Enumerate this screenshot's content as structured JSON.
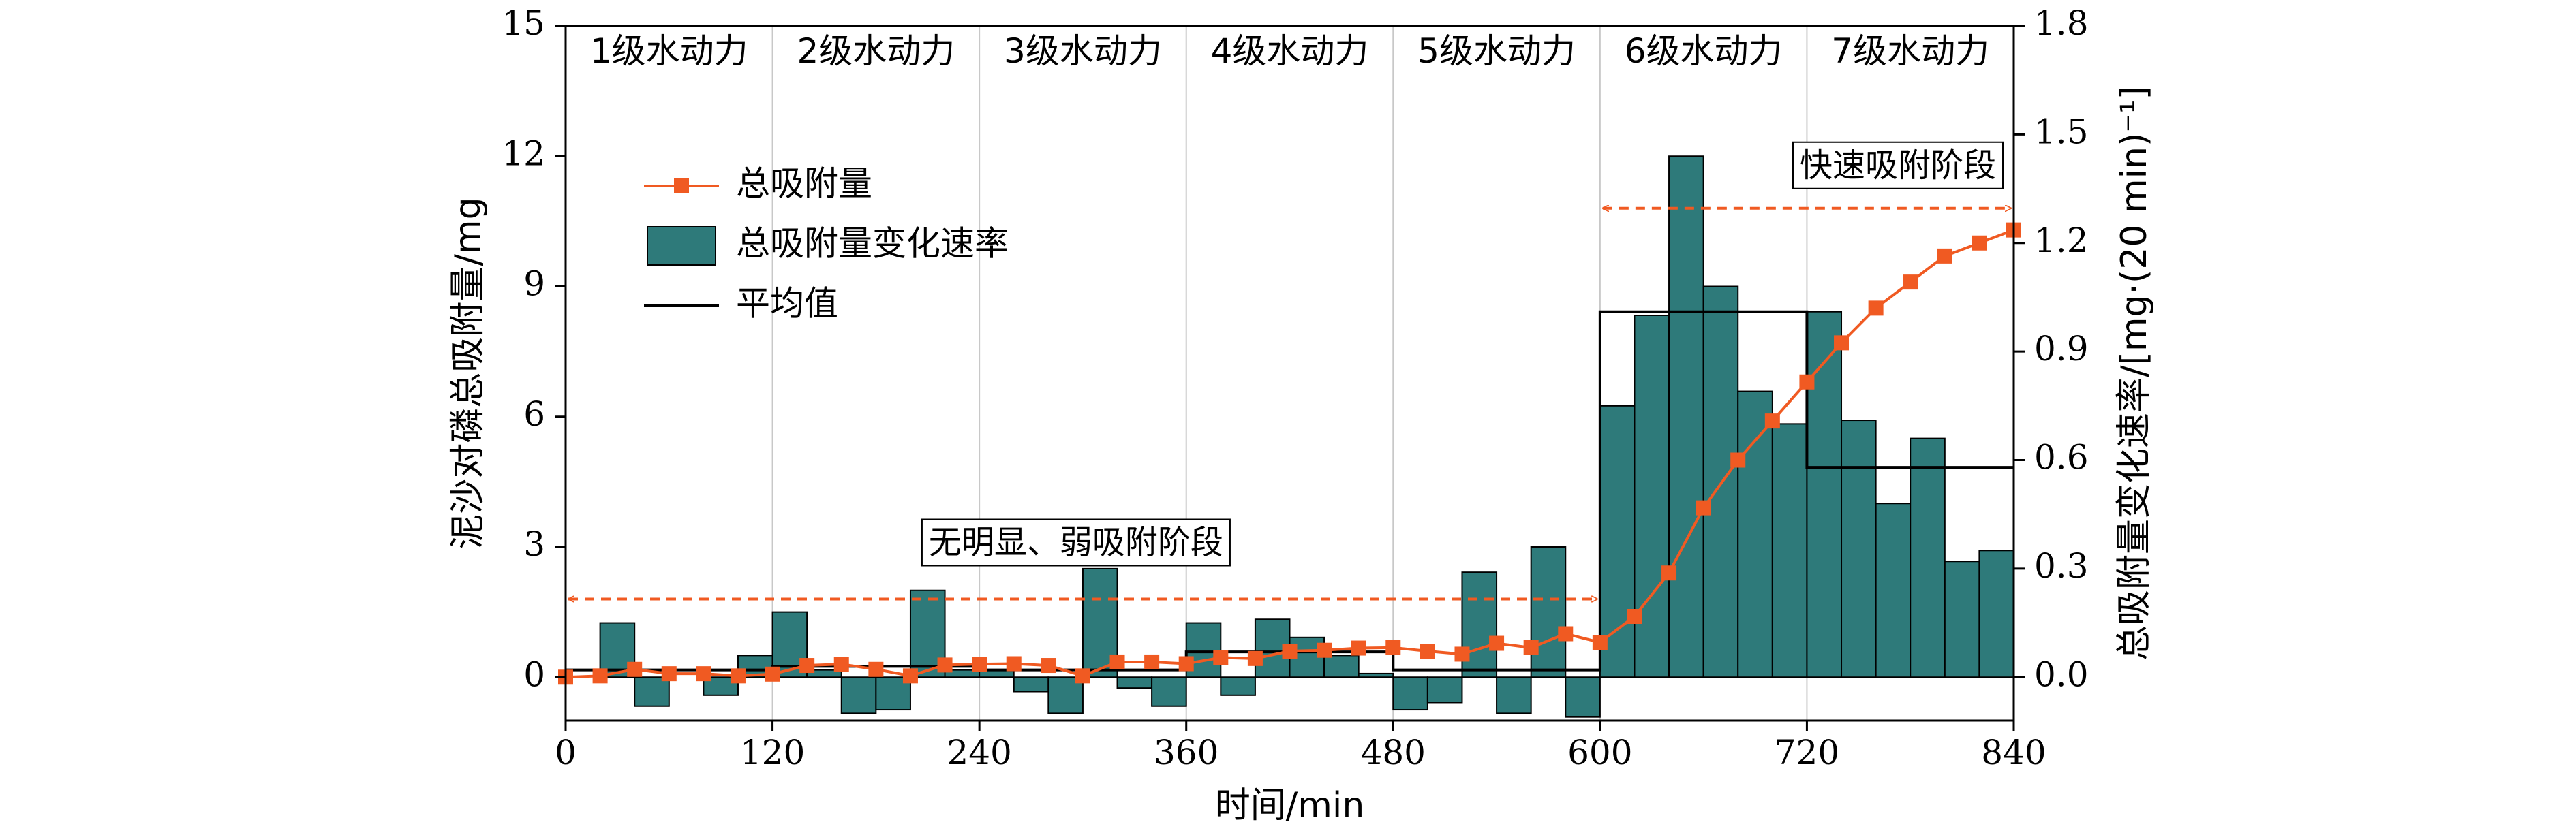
{
  "chart_data": {
    "type": "bar+line",
    "x_axis": {
      "label": "时间/min",
      "min": 0,
      "max": 840,
      "ticks": [
        0,
        120,
        240,
        360,
        480,
        600,
        720,
        840
      ]
    },
    "y_left": {
      "label": "泥沙对磷总吸附量/mg",
      "min": -1,
      "max": 15,
      "ticks": [
        0,
        3,
        6,
        9,
        12,
        15
      ],
      "tick_labels": [
        "0",
        "3",
        "6",
        "9",
        "12",
        "15"
      ]
    },
    "y_right": {
      "label": "总吸附量变化速率/[mg·(20 min)⁻¹]",
      "min": -0.12,
      "max": 1.8,
      "ticks": [
        0,
        0.3,
        0.6,
        0.9,
        1.2,
        1.5,
        1.8
      ],
      "tick_labels": [
        "0.0",
        "0.3",
        "0.6",
        "0.9",
        "1.2",
        "1.5",
        "1.8"
      ]
    },
    "stages": [
      "1级水动力",
      "2级水动力",
      "3级水动力",
      "4级水动力",
      "5级水动力",
      "6级水动力",
      "7级水动力"
    ],
    "legend": {
      "position": "top-left",
      "items": [
        "总吸附量",
        "总吸附量变化速率",
        "平均值"
      ]
    },
    "series": [
      {
        "name": "总吸附量",
        "type": "line",
        "axis": "left",
        "x": [
          0,
          20,
          40,
          60,
          80,
          100,
          120,
          140,
          160,
          180,
          200,
          220,
          240,
          260,
          280,
          300,
          320,
          340,
          360,
          380,
          400,
          420,
          440,
          460,
          480,
          500,
          520,
          540,
          560,
          580,
          600,
          620,
          640,
          660,
          680,
          700,
          720,
          740,
          760,
          780,
          800,
          820,
          840
        ],
        "values": [
          0.0,
          0.03,
          0.18,
          0.08,
          0.08,
          0.03,
          0.07,
          0.27,
          0.3,
          0.18,
          0.03,
          0.28,
          0.3,
          0.31,
          0.27,
          0.03,
          0.35,
          0.35,
          0.31,
          0.45,
          0.43,
          0.6,
          0.62,
          0.67,
          0.68,
          0.6,
          0.53,
          0.78,
          0.68,
          1.0,
          0.8,
          1.4,
          2.4,
          3.9,
          5.0,
          5.9,
          6.8,
          7.7,
          8.5,
          9.1,
          9.7,
          10.0,
          10.3
        ]
      },
      {
        "name": "总吸附量变化速率",
        "type": "bar",
        "axis": "right",
        "x": [
          10,
          30,
          50,
          70,
          90,
          110,
          130,
          150,
          170,
          190,
          210,
          230,
          250,
          270,
          290,
          310,
          330,
          350,
          370,
          390,
          410,
          430,
          450,
          470,
          490,
          510,
          530,
          550,
          570,
          590,
          610,
          630,
          650,
          670,
          690,
          710,
          730,
          750,
          770,
          790,
          810,
          830
        ],
        "values": [
          0.0,
          0.15,
          -0.08,
          0.0,
          -0.05,
          0.06,
          0.18,
          0.02,
          -0.1,
          -0.09,
          0.24,
          0.02,
          0.02,
          -0.04,
          -0.1,
          0.3,
          -0.03,
          -0.08,
          0.15,
          -0.05,
          0.16,
          0.11,
          0.06,
          0.01,
          -0.09,
          -0.07,
          0.29,
          -0.1,
          0.36,
          -0.11,
          0.75,
          1.0,
          1.44,
          1.08,
          0.79,
          0.7,
          1.01,
          0.71,
          0.48,
          0.66,
          0.32,
          0.35
        ]
      },
      {
        "name": "平均值",
        "type": "step",
        "axis": "right",
        "x": [
          0,
          120,
          120,
          240,
          240,
          360,
          360,
          480,
          480,
          600,
          600,
          720,
          720,
          840
        ],
        "values": [
          0.02,
          0.02,
          0.03,
          0.03,
          0.02,
          0.02,
          0.07,
          0.07,
          0.02,
          0.02,
          1.01,
          1.01,
          0.58,
          0.58
        ]
      }
    ],
    "annotations": [
      {
        "text": "无明显、弱吸附阶段",
        "color": "#C00000",
        "range_x": [
          0,
          600
        ],
        "y": 1.8,
        "axis": "left"
      },
      {
        "text": "快速吸附阶段",
        "color": "#C00000",
        "range_x": [
          600,
          840
        ],
        "y": 10.8,
        "axis": "left"
      }
    ],
    "colors": {
      "line": "#F05A22",
      "bars": "#2E7A7A",
      "bar_edge": "#000000",
      "mean": "#000000",
      "annotation": "#C00000",
      "grid": "#C8C8C8"
    },
    "grid": "vertical stage dividers only"
  }
}
